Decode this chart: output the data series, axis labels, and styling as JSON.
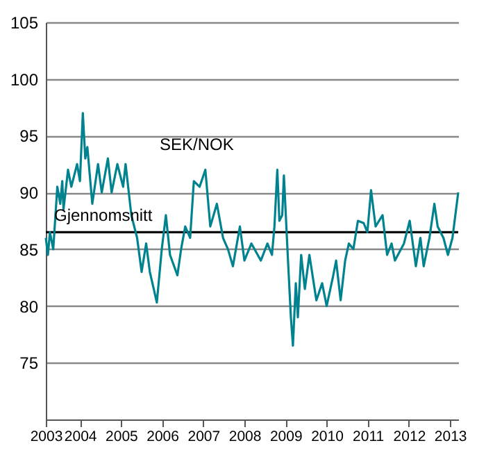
{
  "chart_data": {
    "type": "line",
    "x": [
      2003.17,
      2003.22,
      2003.27,
      2003.35,
      2003.45,
      2003.52,
      2003.57,
      2003.6,
      2003.71,
      2003.79,
      2003.93,
      2004.0,
      2004.07,
      2004.13,
      2004.18,
      2004.3,
      2004.44,
      2004.53,
      2004.68,
      2004.77,
      2004.91,
      2005.05,
      2005.11,
      2005.25,
      2005.39,
      2005.5,
      2005.61,
      2005.7,
      2005.87,
      2005.99,
      2006.09,
      2006.19,
      2006.37,
      2006.46,
      2006.56,
      2006.68,
      2006.77,
      2006.91,
      2007.05,
      2007.17,
      2007.33,
      2007.48,
      2007.6,
      2007.72,
      2007.89,
      2008.0,
      2008.17,
      2008.4,
      2008.56,
      2008.67,
      2008.73,
      2008.8,
      2008.85,
      2008.92,
      2008.96,
      2009.06,
      2009.13,
      2009.18,
      2009.25,
      2009.3,
      2009.38,
      2009.47,
      2009.58,
      2009.75,
      2009.89,
      2010.0,
      2010.15,
      2010.23,
      2010.34,
      2010.45,
      2010.54,
      2010.65,
      2010.76,
      2010.9,
      2010.99,
      2011.08,
      2011.19,
      2011.36,
      2011.47,
      2011.58,
      2011.66,
      2011.88,
      2012.02,
      2012.17,
      2012.28,
      2012.36,
      2012.5,
      2012.62,
      2012.7,
      2012.84,
      2012.95,
      2013.06,
      2013.2
    ],
    "series": [
      {
        "color": "#00838f",
        "values": [
          86,
          84.5,
          86.5,
          85,
          90.5,
          89,
          91,
          88.5,
          92,
          90.5,
          92.5,
          91,
          97,
          93,
          94,
          89,
          92.5,
          90,
          93,
          90,
          92.5,
          90.5,
          92.5,
          88,
          86,
          83,
          85.5,
          83,
          80.3,
          85,
          88,
          84.5,
          82.7,
          85,
          87,
          86,
          91,
          90.5,
          92,
          87,
          89,
          86,
          85,
          83.5,
          87,
          84,
          85.5,
          84,
          85.5,
          84.5,
          87,
          92,
          87.5,
          88,
          91.5,
          84,
          79,
          76.5,
          82,
          79,
          84.5,
          81.5,
          84.5,
          80.5,
          82,
          80,
          82.5,
          84,
          80.5,
          84,
          85.5,
          85,
          87.5,
          87.3,
          86.5,
          90.2,
          87,
          88,
          84.5,
          85.5,
          84,
          85.5,
          87.5,
          83.5,
          86,
          83.5,
          86,
          89,
          87,
          86,
          84.5,
          86,
          90
        ]
      }
    ],
    "xlim": [
      2003.17,
      2013.2
    ],
    "xticks": [
      {
        "value": 2003.17,
        "label": "2003"
      },
      2004,
      2005,
      2006,
      2007,
      2008,
      2009,
      2010,
      2011,
      2012,
      2013
    ],
    "ylim": [
      70,
      105
    ],
    "yticks": [
      75,
      80,
      85,
      90,
      95,
      100,
      105
    ],
    "grid": "y",
    "line_style": "solid",
    "ref_lines": [
      {
        "axis": "y",
        "value": 86.5,
        "label": "Gjennomsnitt",
        "color": "#000000"
      }
    ],
    "annotations": [
      "SEK/NOK"
    ]
  }
}
